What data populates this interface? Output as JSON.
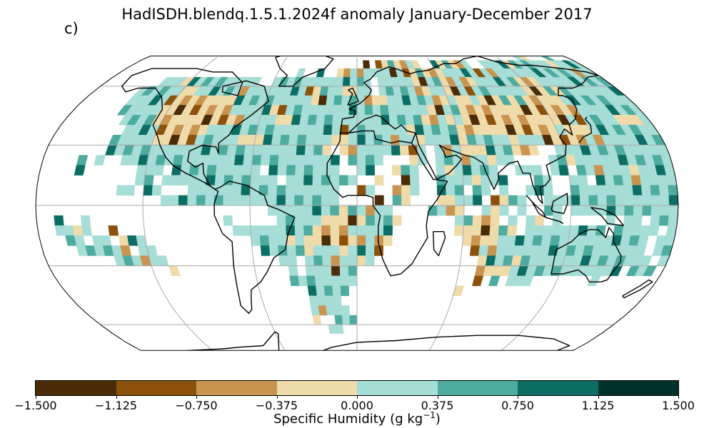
{
  "title": "HadISDH.blendq.1.5.1.2024f anomaly January-December 2017",
  "panel_label": "c)",
  "colorbar": {
    "label_main": "Specific Humidity (g kg",
    "label_exp": "−1",
    "label_close": ")",
    "ticks": [
      "−1.500",
      "−1.125",
      "−0.750",
      "−0.375",
      "0.000",
      "0.375",
      "0.750",
      "1.125",
      "1.500"
    ],
    "colors": [
      "#4a2c08",
      "#8c510a",
      "#c89450",
      "#efdaa9",
      "#a6ddd6",
      "#4dab9f",
      "#0b6d64",
      "#00302a"
    ]
  },
  "chart_data": {
    "type": "heatmap",
    "projection": "Robinson",
    "variable": "Specific Humidity anomaly",
    "units": "g kg-1",
    "period": "January-December 2017",
    "vmin": -1.5,
    "vmax": 1.5,
    "bin_edges": [
      -1.5,
      -1.125,
      -0.75,
      -0.375,
      0.0,
      0.375,
      0.75,
      1.125,
      1.5
    ],
    "graticule_lats": [
      -60,
      -30,
      0,
      30,
      60
    ],
    "graticule_lons": [
      -120,
      -60,
      0,
      60,
      120
    ],
    "cell_size_deg": 5,
    "rows": [
      {
        "lat": 77.5,
        "cells": "...............................................................+-...+......+..+..+..."
      },
      {
        "lat": 72.5,
        "cells": ".....................................-.--+--+-..+-+--+..++++-++++++-++++++--+++........"
      },
      {
        "lat": 67.5,
        "cells": "...........................+..+..--+-++++-+--+---+++++-+-++++++++++++-++++++++++++....."
      },
      {
        "lat": 62.5,
        "cells": "........+++-++++++++++..++++++++++++++.+++++--++--+--++++++---++++++++++++++++++++++++++.."
      },
      {
        "lat": 57.5,
        "cells": "......++++++--++++++-++++++++--+++--++.+++++--++--+-+++++++---+-+++++++++++++++++++++++++.."
      },
      {
        "lat": 52.5,
        "cells": "......+++++---------++++++++++--+++++---++++++--+--+---+-+-----+++++++++---++++++++++++++.."
      },
      {
        "lat": 47.5,
        "cells": "......+++++---------+++++--++++++++++++++++++--++---------------+++++++++--++++++-+-+++++.."
      },
      {
        "lat": 42.5,
        "cells": ".......++++-----------++++--++++++++++++++++--+-+-------------+-++++---+++++++++++--+++++.."
      },
      {
        "lat": 37.5,
        "cells": "........++++------++++++++++++++++-+++++++-+++++------------+---++++++++++++++++++-++++++.."
      },
      {
        "lat": 32.5,
        "cells": ".......+++++-----+++++---++++++++--+++++-++-++++-+++++-+++-----+-++++++++++++++++++--+++.."
      },
      {
        "lat": 27.5,
        "cells": ".......+++++++++++++++++++++++++-.--+++++--+.+-+---+++---..++++++++++++++++++++++--+++++.."
      },
      {
        "lat": 22.5,
        "cells": "....+.+..+++++++++++++++++++++++++.++++...-+.+++-++-++....++-++++++++++++++++++++++++++..."
      },
      {
        "lat": 17.5,
        "cells": "....+......+++.++++++++++.++++++++..++..-++..+-+++++..+++.++.++-+++-++++++++++++++++++...."
      },
      {
        "lat": 12.5,
        "cells": "...........++.+++++++++++++.++++++++..-..-+..++++-+++...++..++.++++-+++++++++++++-+++....."
      },
      {
        "lat": 7.5,
        "cells": ".........++.++...+++++++++++++++++..-+..--+..+++.++.+..+++..++++++++++++++++++++++++++...."
      },
      {
        "lat": 2.5,
        "cells": "..............++++++++++++++++++++....-.+-...--+++.--++..+++++++++++++++++++++++++++++++++.."
      },
      {
        "lat": -2.5,
        "cells": "..........................++++++++-++-++....++--..+-+.+..++.++++++++++++++++++++++++++++++.."
      },
      {
        "lat": -7.5,
        "cells": "..+..+...............+.....+++++-----+++-......++---.+.+-.+.....+.++.+++++++++++++++++++++.."
      },
      {
        "lat": -12.5,
        "cells": "..++-+..-.............+++++++++----+++++.......-----+-.+++++++++.+++++.++++-++++++++++++++..."
      },
      {
        "lat": -17.5,
        "cells": "...++.++.-++............++++-+-------+--........----+++++++++++++++++.+++++++++++++++++++++.."
      },
      {
        "lat": -22.5,
        "cells": "....+++++-.++............+++++-+++-+++-..........-+-+++++++++++++++++.+++++++++++++++++++++.."
      },
      {
        "lat": -27.5,
        "cells": "........+++-++.............++.+++-++-+............-+++-+++++++++++++++.++++++++++++++++++++..."
      },
      {
        "lat": -32.5,
        "cells": "..............-.............+.+++-++..............----+++++++++++++.+++.++++++++++++++++++++.."
      },
      {
        "lat": -37.5,
        "cells": "............................++++++++..............-.+.+++.......+.......++++++++++++++++++..."
      },
      {
        "lat": -42.5,
        "cells": "..............................+++++.............-...............................+++++-++-..."
      },
      {
        "lat": -47.5,
        "cells": "..............................++++..............................................++++--....."
      },
      {
        "lat": -52.5,
        "cells": "..............................+-+++............................................++.........."
      },
      {
        "lat": -57.5,
        "cells": "..............................-..+++............................................++........."
      },
      {
        "lat": -62.5,
        "cells": "................................++................................................++......."
      }
    ]
  }
}
